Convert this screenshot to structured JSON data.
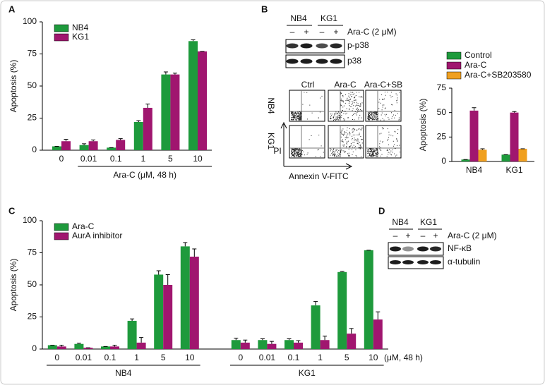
{
  "chart_data": [
    {
      "type": "bar",
      "panel_label": "A",
      "ylabel": "Apoptosis (%)",
      "xlabel": "Ara-C (μM, 48 h)",
      "categories": [
        "0",
        "0.01",
        "0.1",
        "1",
        "5",
        "10"
      ],
      "series": [
        {
          "name": "NB4",
          "color": "#1e9a3c",
          "values": [
            3,
            4,
            2,
            22,
            59,
            85
          ],
          "errors": [
            0,
            1,
            0,
            1,
            2,
            1
          ]
        },
        {
          "name": "KG1",
          "color": "#a0166f",
          "values": [
            7,
            7,
            8,
            33,
            59,
            77
          ],
          "errors": [
            1.5,
            1,
            1,
            3,
            1,
            0
          ]
        }
      ],
      "ylim": [
        0,
        100
      ],
      "yticks": [
        0,
        25,
        50,
        75,
        100
      ]
    },
    {
      "type": "bar",
      "ylabel": "Apoptosis (%)",
      "categories": [
        "NB4",
        "KG1"
      ],
      "series": [
        {
          "name": "Control",
          "color": "#1e9a3c",
          "values": [
            2,
            7
          ],
          "errors": [
            0,
            0
          ]
        },
        {
          "name": "Ara-C",
          "color": "#a0166f",
          "values": [
            52,
            50
          ],
          "errors": [
            3,
            1
          ]
        },
        {
          "name": "Ara-C+SB203580",
          "color": "#f0a020",
          "values": [
            12,
            13
          ],
          "errors": [
            1,
            0
          ]
        }
      ],
      "ylim": [
        0,
        75
      ],
      "yticks": [
        0,
        25,
        50,
        75
      ]
    },
    {
      "type": "bar",
      "panel_label": "C",
      "ylabel": "Apoptosis (%)",
      "xlabel": "(μM, 48 h)",
      "groups": [
        "NB4",
        "KG1"
      ],
      "categories": [
        "0",
        "0.01",
        "0.1",
        "1",
        "5",
        "10",
        "0",
        "0.01",
        "0.1",
        "1",
        "5",
        "10"
      ],
      "series": [
        {
          "name": "Ara-C",
          "color": "#1e9a3c",
          "values": [
            3,
            4,
            2,
            22,
            58,
            80,
            7,
            7,
            7,
            34,
            60,
            77
          ],
          "errors": [
            0,
            0.5,
            0,
            1.5,
            3,
            3,
            1.5,
            1,
            1,
            3,
            0.5,
            0
          ]
        },
        {
          "name": "AurA inhibitor",
          "color": "#a0166f",
          "values": [
            2,
            1,
            2,
            5,
            50,
            72,
            5,
            4,
            5,
            7,
            12,
            23
          ],
          "errors": [
            1,
            0,
            1,
            4,
            8,
            6,
            2,
            2,
            1.5,
            3,
            4,
            6
          ]
        }
      ],
      "ylim": [
        0,
        100
      ],
      "yticks": [
        0,
        25,
        50,
        75,
        100
      ]
    }
  ],
  "blot_b": {
    "panel_label": "B",
    "cell_lines": [
      "NB4",
      "KG1"
    ],
    "signs": [
      "–",
      "+",
      "–",
      "+"
    ],
    "treatment": "Ara-C (2 μM)",
    "bands": [
      "p-p38",
      "p38"
    ]
  },
  "flow": {
    "columns": [
      "Ctrl",
      "Ara-C",
      "Ara-C+SB"
    ],
    "rows": [
      "NB4",
      "KG1"
    ],
    "y_label": "PI",
    "x_label": "Annexin V-FITC"
  },
  "blot_d": {
    "panel_label": "D",
    "cell_lines": [
      "NB4",
      "KG1"
    ],
    "signs": [
      "–",
      "+",
      "–",
      "+"
    ],
    "treatment": "Ara-C (2 μM)",
    "bands": [
      "NF-κB",
      "α-tubulin"
    ]
  }
}
